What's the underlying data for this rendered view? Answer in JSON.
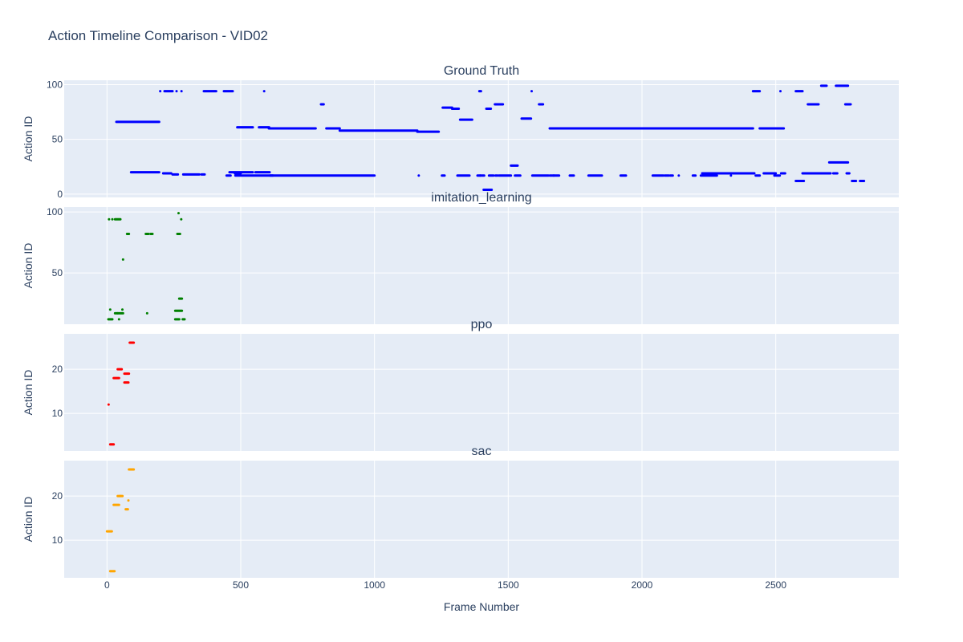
{
  "title": "Action Timeline Comparison - VID02",
  "x_axis_label": "Frame Number",
  "x_ticks": [
    "0",
    "500",
    "1000",
    "1500",
    "2000",
    "2500"
  ],
  "chart_data": {
    "type": "scatter",
    "title": "Action Timeline Comparison - VID02",
    "xlabel": "Frame Number",
    "xlim": [
      -160,
      2960
    ],
    "x_ticks": [
      0,
      500,
      1000,
      1500,
      2000,
      2500
    ],
    "grid": true,
    "panels": [
      {
        "name": "Ground Truth",
        "color": "#0000ff",
        "ylabel": "Action ID",
        "ylim": [
          -3,
          104
        ],
        "y_ticks": [
          0,
          50,
          100
        ],
        "segments": [
          [
            35,
            195,
            66
          ],
          [
            90,
            195,
            20
          ],
          [
            198,
            200,
            94
          ],
          [
            215,
            245,
            94
          ],
          [
            258,
            262,
            94
          ],
          [
            277,
            280,
            94
          ],
          [
            210,
            240,
            19
          ],
          [
            245,
            265,
            18
          ],
          [
            285,
            345,
            18
          ],
          [
            353,
            365,
            18
          ],
          [
            362,
            408,
            94
          ],
          [
            437,
            470,
            94
          ],
          [
            447,
            462,
            17
          ],
          [
            458,
            545,
            20
          ],
          [
            478,
            500,
            19
          ],
          [
            480,
            620,
            17
          ],
          [
            487,
            545,
            61
          ],
          [
            568,
            606,
            61
          ],
          [
            555,
            608,
            20
          ],
          [
            585,
            590,
            94
          ],
          [
            605,
            780,
            60
          ],
          [
            610,
            1000,
            17
          ],
          [
            800,
            810,
            82
          ],
          [
            820,
            870,
            60
          ],
          [
            870,
            1160,
            58
          ],
          [
            1160,
            1240,
            57
          ],
          [
            1163,
            1168,
            17
          ],
          [
            1252,
            1262,
            17
          ],
          [
            1255,
            1290,
            79
          ],
          [
            1290,
            1315,
            78
          ],
          [
            1310,
            1355,
            17
          ],
          [
            1320,
            1365,
            68
          ],
          [
            1385,
            1395,
            17
          ],
          [
            1395,
            1410,
            17
          ],
          [
            1392,
            1398,
            94
          ],
          [
            1408,
            1438,
            4
          ],
          [
            1418,
            1435,
            78
          ],
          [
            1428,
            1445,
            17
          ],
          [
            1450,
            1480,
            82
          ],
          [
            1452,
            1460,
            17
          ],
          [
            1465,
            1510,
            17
          ],
          [
            1510,
            1535,
            26
          ],
          [
            1525,
            1545,
            17
          ],
          [
            1550,
            1585,
            69
          ],
          [
            1585,
            1590,
            94
          ],
          [
            1590,
            1650,
            17
          ],
          [
            1615,
            1630,
            82
          ],
          [
            1655,
            1670,
            17
          ],
          [
            1670,
            1690,
            17
          ],
          [
            1655,
            2120,
            60
          ],
          [
            1730,
            1745,
            17
          ],
          [
            1800,
            1850,
            17
          ],
          [
            1920,
            1940,
            17
          ],
          [
            2040,
            2080,
            17
          ],
          [
            2085,
            2100,
            17
          ],
          [
            2105,
            2115,
            17
          ],
          [
            2135,
            2140,
            17
          ],
          [
            2120,
            2210,
            60
          ],
          [
            2190,
            2200,
            17
          ],
          [
            2220,
            2280,
            17
          ],
          [
            2225,
            2290,
            19
          ],
          [
            2230,
            2270,
            18
          ],
          [
            2210,
            2415,
            60
          ],
          [
            2290,
            2420,
            19
          ],
          [
            2330,
            2335,
            17
          ],
          [
            2415,
            2440,
            94
          ],
          [
            2425,
            2440,
            17
          ],
          [
            2440,
            2530,
            60
          ],
          [
            2455,
            2500,
            19
          ],
          [
            2495,
            2515,
            17
          ],
          [
            2515,
            2520,
            94
          ],
          [
            2520,
            2535,
            19
          ],
          [
            2575,
            2600,
            94
          ],
          [
            2575,
            2605,
            12
          ],
          [
            2600,
            2650,
            19
          ],
          [
            2620,
            2660,
            82
          ],
          [
            2650,
            2705,
            19
          ],
          [
            2670,
            2690,
            99
          ],
          [
            2700,
            2770,
            29
          ],
          [
            2715,
            2730,
            19
          ],
          [
            2725,
            2770,
            99
          ],
          [
            2760,
            2780,
            82
          ],
          [
            2765,
            2775,
            19
          ],
          [
            2785,
            2800,
            12
          ],
          [
            2815,
            2830,
            12
          ]
        ]
      },
      {
        "name": "imitation_learning",
        "color": "#008000",
        "ylabel": "Action ID",
        "ylim": [
          8,
          104
        ],
        "y_ticks": [
          50,
          100
        ],
        "segments": [
          [
            5,
            10,
            94
          ],
          [
            18,
            22,
            94
          ],
          [
            30,
            50,
            94
          ],
          [
            5,
            20,
            12
          ],
          [
            10,
            14,
            20
          ],
          [
            30,
            40,
            17
          ],
          [
            40,
            60,
            17
          ],
          [
            42,
            48,
            12
          ],
          [
            55,
            60,
            20
          ],
          [
            58,
            62,
            61
          ],
          [
            75,
            82,
            82
          ],
          [
            145,
            155,
            82
          ],
          [
            163,
            170,
            82
          ],
          [
            148,
            152,
            17
          ],
          [
            255,
            270,
            12
          ],
          [
            255,
            280,
            19
          ],
          [
            263,
            273,
            82
          ],
          [
            265,
            270,
            99
          ],
          [
            270,
            280,
            29
          ],
          [
            275,
            280,
            94
          ],
          [
            283,
            290,
            12
          ]
        ]
      },
      {
        "name": "ppo",
        "color": "#ff0000",
        "ylabel": "Action ID",
        "ylim": [
          1.5,
          28
        ],
        "y_ticks": [
          10,
          20
        ],
        "segments": [
          [
            4,
            8,
            12
          ],
          [
            12,
            25,
            3
          ],
          [
            25,
            45,
            18
          ],
          [
            40,
            55,
            20
          ],
          [
            65,
            82,
            19
          ],
          [
            65,
            80,
            17
          ],
          [
            85,
            100,
            26
          ]
        ]
      },
      {
        "name": "sac",
        "color": "#ffa500",
        "ylabel": "Action ID",
        "ylim": [
          1.5,
          28
        ],
        "y_ticks": [
          10,
          20
        ],
        "segments": [
          [
            0,
            18,
            12
          ],
          [
            12,
            28,
            3
          ],
          [
            25,
            45,
            18
          ],
          [
            40,
            50,
            20
          ],
          [
            50,
            58,
            20
          ],
          [
            70,
            78,
            17
          ],
          [
            78,
            82,
            19
          ],
          [
            82,
            100,
            26
          ]
        ]
      }
    ]
  }
}
